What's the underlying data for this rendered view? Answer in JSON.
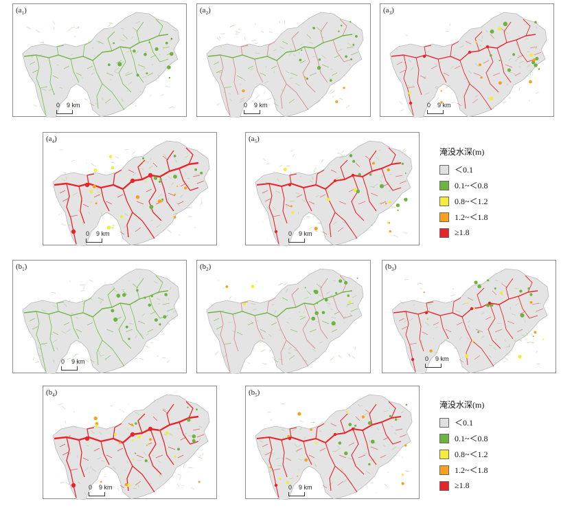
{
  "panels": [
    {
      "id": "a1",
      "main": "a",
      "sub": "1",
      "scheme": 0
    },
    {
      "id": "a2",
      "main": "a",
      "sub": "2",
      "scheme": 1
    },
    {
      "id": "a3",
      "main": "a",
      "sub": "3",
      "scheme": 2
    },
    {
      "id": "a4",
      "main": "a",
      "sub": "4",
      "scheme": 3
    },
    {
      "id": "a5",
      "main": "a",
      "sub": "5",
      "scheme": 4
    },
    {
      "id": "b1",
      "main": "b",
      "sub": "1",
      "scheme": 0
    },
    {
      "id": "b2",
      "main": "b",
      "sub": "2",
      "scheme": 1
    },
    {
      "id": "b3",
      "main": "b",
      "sub": "3",
      "scheme": 2
    },
    {
      "id": "b4",
      "main": "b",
      "sub": "4",
      "scheme": 3
    },
    {
      "id": "b5",
      "main": "b",
      "sub": "5",
      "scheme": 4
    }
  ],
  "scale_bar": {
    "start": "0",
    "end": "9 km"
  },
  "legend": {
    "title": "淹没水深(m)",
    "items": [
      {
        "label": "＜0.1",
        "color": "#e0e0e0"
      },
      {
        "label": "0.1~＜0.8",
        "color": "#6db33f"
      },
      {
        "label": "0.8~＜1.2",
        "color": "#f2ec3a"
      },
      {
        "label": "1.2~＜1.8",
        "color": "#f5a21c"
      },
      {
        "label": "≥1.8",
        "color": "#e8242a"
      }
    ]
  },
  "colors": {
    "map_fill": "#e4e4e4",
    "map_edge": "#b9b9b9",
    "river_light": "#d98b8b"
  }
}
